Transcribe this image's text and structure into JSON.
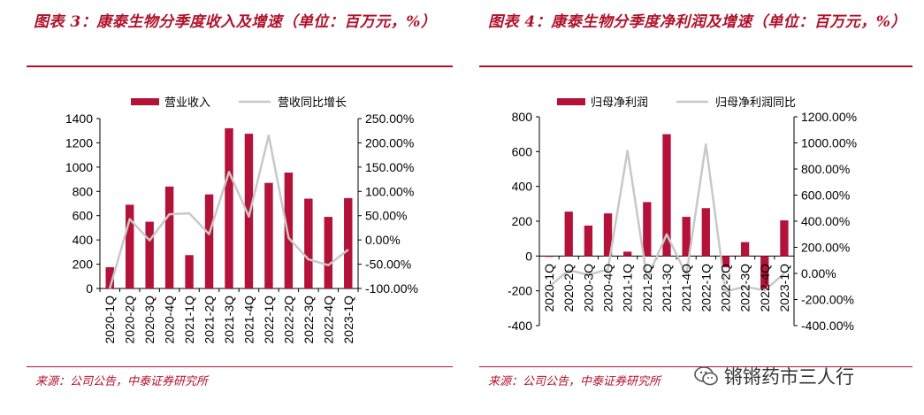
{
  "panels": {
    "left": {
      "title": "图表 3：康泰生物分季度收入及增速（单位：百万元，%）",
      "source": "来源：公司公告，中泰证券研究所"
    },
    "right": {
      "title": "图表 4：康泰生物分季度净利润及增速（单位：百万元，%）",
      "source": "来源：公司公告，中泰证券研究所"
    }
  },
  "watermark": "锵锵药市三人行",
  "colors": {
    "bar": "#b5123a",
    "line": "#c8c8c8",
    "accent": "#b0122b"
  },
  "chart_data": [
    {
      "type": "bar+line",
      "categories": [
        "2020-1Q",
        "2020-2Q",
        "2020-3Q",
        "2020-4Q",
        "2021-1Q",
        "2021-2Q",
        "2021-3Q",
        "2021-4Q",
        "2022-1Q",
        "2022-2Q",
        "2022-3Q",
        "2022-4Q",
        "2023-1Q"
      ],
      "series": [
        {
          "name": "营业收入",
          "type": "bar",
          "axis": "left",
          "values": [
            175,
            690,
            550,
            840,
            275,
            775,
            1320,
            1275,
            870,
            955,
            740,
            590,
            745
          ]
        },
        {
          "name": "营收同比增长",
          "type": "line",
          "axis": "right",
          "values": [
            -100,
            43,
            -1,
            53,
            55,
            12,
            140,
            48,
            215,
            4,
            -40,
            -52,
            -20
          ]
        }
      ],
      "y_left": {
        "min": 0,
        "max": 1400,
        "step": 200,
        "ticks": [
          "0",
          "200",
          "400",
          "600",
          "800",
          "1000",
          "1200",
          "1400"
        ]
      },
      "y_right": {
        "min": -100,
        "max": 250,
        "step": 50,
        "ticks": [
          "-100.00%",
          "-50.00%",
          "0.00%",
          "50.00%",
          "100.00%",
          "150.00%",
          "200.00%",
          "250.00%"
        ]
      },
      "legend": "top"
    },
    {
      "type": "bar+line",
      "categories": [
        "2020-1Q",
        "2020-2Q",
        "2020-3Q",
        "2020-4Q",
        "2021-1Q",
        "2021-2Q",
        "2021-3Q",
        "2021-4Q",
        "2022-1Q",
        "2022-2Q",
        "2022-3Q",
        "2022-4Q",
        "2023-1Q"
      ],
      "series": [
        {
          "name": "归母净利润",
          "type": "bar",
          "axis": "left",
          "values": [
            -5,
            255,
            175,
            245,
            25,
            310,
            700,
            225,
            275,
            -65,
            80,
            -195,
            205
          ]
        },
        {
          "name": "归母净利润同比",
          "type": "line",
          "axis": "right",
          "values": [
            -100,
            25,
            -10,
            30,
            940,
            -40,
            300,
            -10,
            990,
            -140,
            -100,
            -130,
            0
          ]
        }
      ],
      "y_left": {
        "min": -400,
        "max": 800,
        "step": 200,
        "ticks": [
          "-400",
          "-200",
          "0",
          "200",
          "400",
          "600",
          "800"
        ]
      },
      "y_right": {
        "min": -400,
        "max": 1200,
        "step": 200,
        "ticks": [
          "-400.00%",
          "-200.00%",
          "0.00%",
          "200.00%",
          "400.00%",
          "600.00%",
          "800.00%",
          "1000.00%",
          "1200.00%"
        ]
      },
      "legend": "top"
    }
  ]
}
